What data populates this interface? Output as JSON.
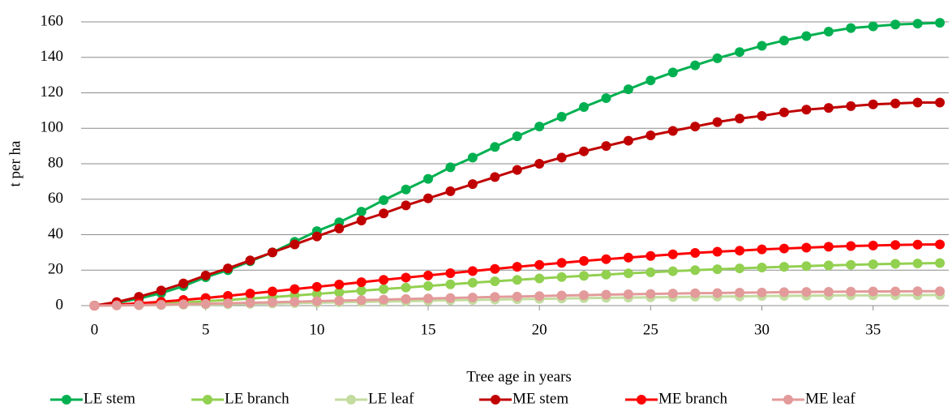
{
  "chart_data": {
    "type": "line",
    "x_label": "Tree age in years",
    "y_label": "t per ha",
    "x": [
      0,
      1,
      2,
      3,
      4,
      5,
      6,
      7,
      8,
      9,
      10,
      11,
      12,
      13,
      14,
      15,
      16,
      17,
      18,
      19,
      20,
      21,
      22,
      23,
      24,
      25,
      26,
      27,
      28,
      29,
      30,
      31,
      32,
      33,
      34,
      35,
      36,
      37,
      38
    ],
    "xlim": [
      -0.6,
      38.4
    ],
    "xticks": [
      0,
      5,
      10,
      15,
      20,
      25,
      30,
      35
    ],
    "ylim": [
      0,
      160
    ],
    "yticks": [
      0,
      20,
      40,
      60,
      80,
      100,
      120,
      140,
      160
    ],
    "grid": true,
    "legend": "bottom",
    "series": [
      {
        "name": "LE stem",
        "color": "#00b050",
        "values": [
          0,
          1.5,
          4,
          7,
          11,
          16,
          20,
          25,
          30,
          36,
          42,
          47,
          53,
          59.5,
          65.5,
          71.5,
          78,
          83.5,
          89.5,
          95.5,
          101,
          106.5,
          112,
          117,
          122,
          127,
          131.5,
          135.5,
          139.5,
          143,
          146.5,
          149.5,
          152,
          154.5,
          156.5,
          157.5,
          158.5,
          159,
          159.5
        ]
      },
      {
        "name": "LE branch",
        "color": "#92d050",
        "values": [
          0,
          0.3,
          0.7,
          1.2,
          1.8,
          2.5,
          3.2,
          4,
          4.8,
          5.7,
          6.6,
          7.5,
          8.4,
          9.3,
          10.2,
          11.1,
          12,
          12.9,
          13.7,
          14.5,
          15.3,
          16.1,
          16.8,
          17.5,
          18.2,
          18.8,
          19.4,
          20,
          20.5,
          21,
          21.5,
          21.9,
          22.3,
          22.7,
          23,
          23.3,
          23.6,
          23.8,
          24
        ]
      },
      {
        "name": "LE leaf",
        "color": "#c3dc9f",
        "values": [
          0,
          0.1,
          0.2,
          0.3,
          0.5,
          0.6,
          0.8,
          1,
          1.2,
          1.4,
          1.6,
          1.9,
          2.1,
          2.3,
          2.5,
          2.8,
          3,
          3.2,
          3.4,
          3.6,
          3.8,
          4,
          4.2,
          4.4,
          4.5,
          4.7,
          4.8,
          5,
          5.1,
          5.2,
          5.4,
          5.5,
          5.6,
          5.7,
          5.8,
          5.8,
          5.9,
          5.9,
          6
        ]
      },
      {
        "name": "ME stem",
        "color": "#c00000",
        "values": [
          0,
          2,
          5,
          8.5,
          12.5,
          17,
          21,
          25.5,
          30,
          34.5,
          39,
          43.5,
          48,
          52,
          56.5,
          60.5,
          64.5,
          68.5,
          72.5,
          76.5,
          80,
          83.5,
          87,
          90,
          93,
          96,
          98.5,
          101,
          103.5,
          105.5,
          107,
          109,
          110.5,
          111.5,
          112.5,
          113.5,
          114,
          114.5,
          114.5
        ]
      },
      {
        "name": "ME branch",
        "color": "#ff0000",
        "values": [
          0,
          0.5,
          1.3,
          2.2,
          3.2,
          4.3,
          5.5,
          6.8,
          8,
          9.3,
          10.6,
          11.9,
          13.2,
          14.5,
          15.8,
          17,
          18.3,
          19.5,
          20.7,
          21.9,
          23,
          24.1,
          25.2,
          26.2,
          27.1,
          28,
          28.9,
          29.7,
          30.4,
          31,
          31.7,
          32.2,
          32.7,
          33.2,
          33.6,
          33.9,
          34.2,
          34.4,
          34.5
        ]
      },
      {
        "name": "ME leaf",
        "color": "#e39a9a",
        "values": [
          0,
          0.1,
          0.3,
          0.5,
          0.8,
          1,
          1.3,
          1.6,
          1.9,
          2.2,
          2.5,
          2.8,
          3.1,
          3.4,
          3.7,
          4,
          4.3,
          4.6,
          4.9,
          5.1,
          5.4,
          5.7,
          5.9,
          6.2,
          6.4,
          6.6,
          6.8,
          7,
          7.1,
          7.3,
          7.4,
          7.6,
          7.7,
          7.8,
          7.9,
          8,
          8,
          8.1,
          8.1
        ]
      }
    ]
  }
}
